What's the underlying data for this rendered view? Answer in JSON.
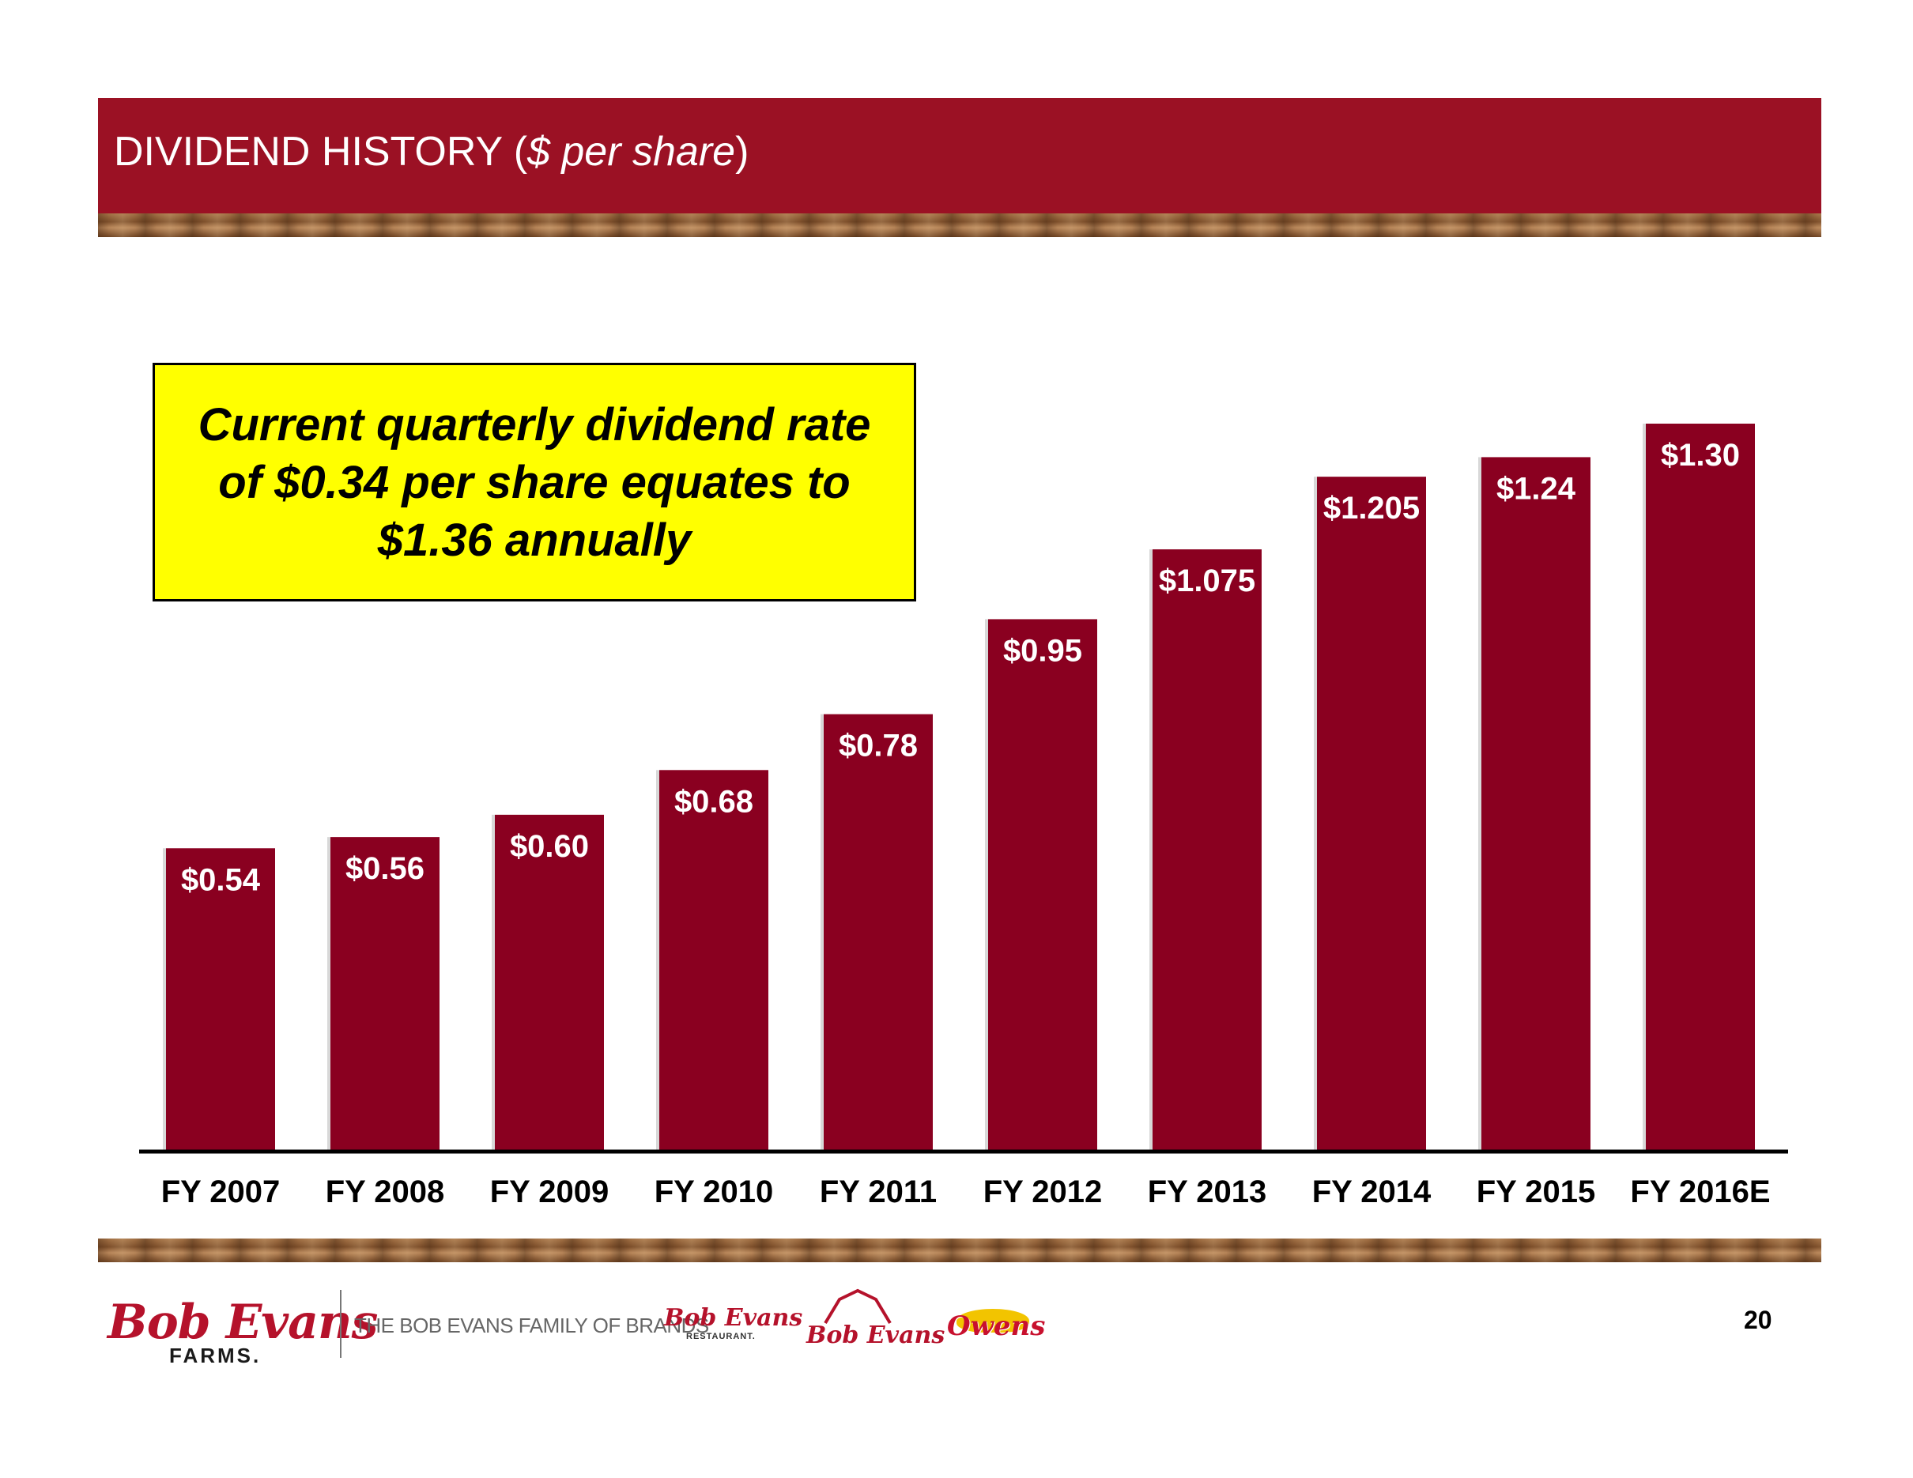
{
  "header": {
    "title_main": "DIVIDEND HISTORY ",
    "title_italic": "$ per share"
  },
  "callout": {
    "text": "Current quarterly dividend rate of $0.34 per share equates to $1.36 annually"
  },
  "chart_data": {
    "type": "bar",
    "title": "DIVIDEND HISTORY ($ per share)",
    "categories": [
      "FY 2007",
      "FY 2008",
      "FY 2009",
      "FY 2010",
      "FY 2011",
      "FY 2012",
      "FY 2013",
      "FY 2014",
      "FY 2015",
      "FY 2016E"
    ],
    "values": [
      0.54,
      0.56,
      0.6,
      0.68,
      0.78,
      0.95,
      1.075,
      1.205,
      1.24,
      1.3
    ],
    "data_labels": [
      "$0.54",
      "$0.56",
      "$0.60",
      "$0.68",
      "$0.78",
      "$0.95",
      "$1.075",
      "$1.205",
      "$1.24",
      "$1.30"
    ],
    "ylim": [
      0,
      1.3
    ],
    "bar_color": "#8a0020",
    "grid": false,
    "legend": "none"
  },
  "footer": {
    "logo_script": "Bob Evans",
    "logo_sub": "FARMS.",
    "family_text": "THE BOB EVANS FAMILY OF BRANDS",
    "brand_restaurant": "Bob Evans",
    "brand_restaurant_sub": "RESTAURANT.",
    "brand_grocery": "Bob Evans",
    "brand_owens": "Owens",
    "page_number": "20"
  },
  "colors": {
    "header": "#9b1124",
    "callout_bg": "#ffff00",
    "brand_red": "#b5122b"
  }
}
